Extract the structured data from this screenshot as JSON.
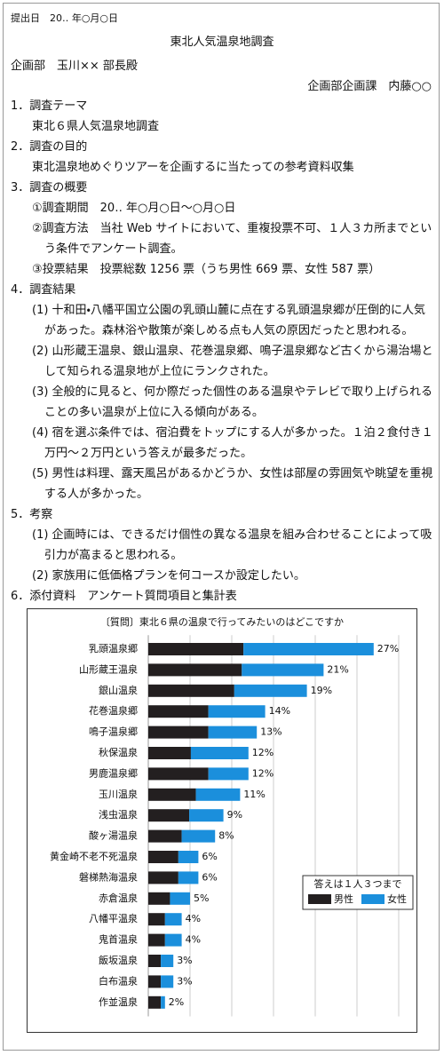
{
  "header": {
    "date": "提出日　20‥ 年○月○日",
    "title": "東北人気温泉地調査",
    "to": "企画部　玉川×× 部長殿",
    "from": "企画部企画課　内藤○○"
  },
  "sections": [
    {
      "heading": "1．調査テーマ",
      "items": [
        "東北６県人気温泉地調査"
      ]
    },
    {
      "heading": "2．調査の目的",
      "items": [
        "東北温泉地めぐりツアーを企画するに当たっての参考資料収集"
      ]
    },
    {
      "heading": "3．調査の概要",
      "items": [
        "①調査期間　20‥ 年○月○日〜○月○日",
        "②調査方法　当社 Web サイトにおいて、重複投票不可、１人３カ所までという条件でアンケート調査。",
        "③投票結果　投票総数 1256 票（うち男性 669 票、女性 587 票）"
      ]
    },
    {
      "heading": "4．調査結果",
      "items": [
        "(1) 十和田・八幡平国立公園の乳頭山麓に点在する乳頭温泉郷が圧倒的に人気があった。森林浴や散策が楽しめる点も人気の原因だったと思われる。",
        "(2) 山形蔵王温泉、銀山温泉、花巻温泉郷、鳴子温泉郷など古くから湯治場として知られる温泉地が上位にランクされた。",
        "(3) 全般的に見ると、何か際だった個性のある温泉やテレビで取り上げられることの多い温泉が上位に入る傾向がある。",
        "(4) 宿を選ぶ条件では、宿泊費をトップにする人が多かった。１泊２食付き１万円〜２万円という答えが最多だった。",
        "(5) 男性は料理、露天風呂があるかどうか、女性は部屋の雰囲気や眺望を重視する人が多かった。"
      ]
    },
    {
      "heading": "5．考察",
      "items": [
        "(1) 企画時には、できるだけ個性の異なる温泉を組み合わせることによって吸引力が高まると思われる。",
        "(2) 家族用に低価格プランを何コースか設定したい。"
      ]
    },
    {
      "heading": "6．添付資料　アンケート質問項目と集計表",
      "items": []
    }
  ],
  "chart_data": {
    "type": "stacked-bar-horizontal",
    "title": "〔質問〕東北６県の温泉で行ってみたいのはどこですか",
    "categories": [
      "乳頭温泉郷",
      "山形蔵王温泉",
      "銀山温泉",
      "花巻温泉郷",
      "鳴子温泉郷",
      "秋保温泉",
      "男鹿温泉郷",
      "玉川温泉",
      "浅虫温泉",
      "酸ヶ湯温泉",
      "黄金崎不老不死温泉",
      "磐梯熱海温泉",
      "赤倉温泉",
      "八幡平温泉",
      "鬼首温泉",
      "飯坂温泉",
      "白布温泉",
      "作並温泉"
    ],
    "series": [
      {
        "name": "男性",
        "color": "#231f20",
        "values": [
          11.4,
          11.2,
          10.3,
          7.2,
          7.2,
          5.1,
          7.2,
          5.7,
          4.9,
          4.0,
          3.6,
          3.6,
          2.6,
          2.0,
          2.0,
          1.5,
          1.5,
          1.5
        ]
      },
      {
        "name": "女性",
        "color": "#1b8fdc",
        "values": [
          15.6,
          9.8,
          8.7,
          6.8,
          5.8,
          6.9,
          4.8,
          5.3,
          4.1,
          4.0,
          2.4,
          2.4,
          2.4,
          2.0,
          2.0,
          1.5,
          1.5,
          0.5
        ]
      }
    ],
    "totals": [
      27,
      21,
      19,
      14,
      13,
      12,
      12,
      11,
      9,
      8,
      6,
      6,
      5,
      4,
      4,
      3,
      3,
      2
    ],
    "total_labels": [
      "27%",
      "21%",
      "19%",
      "14%",
      "13%",
      "12%",
      "12%",
      "11%",
      "9%",
      "8%",
      "6%",
      "6%",
      "5%",
      "4%",
      "4%",
      "3%",
      "3%",
      "2%"
    ],
    "legend_title": "答えは１人３つまで",
    "xlim": [
      0,
      30
    ],
    "grid_lines": [
      5,
      10,
      15,
      20,
      25,
      30
    ],
    "legend": "lower right"
  }
}
